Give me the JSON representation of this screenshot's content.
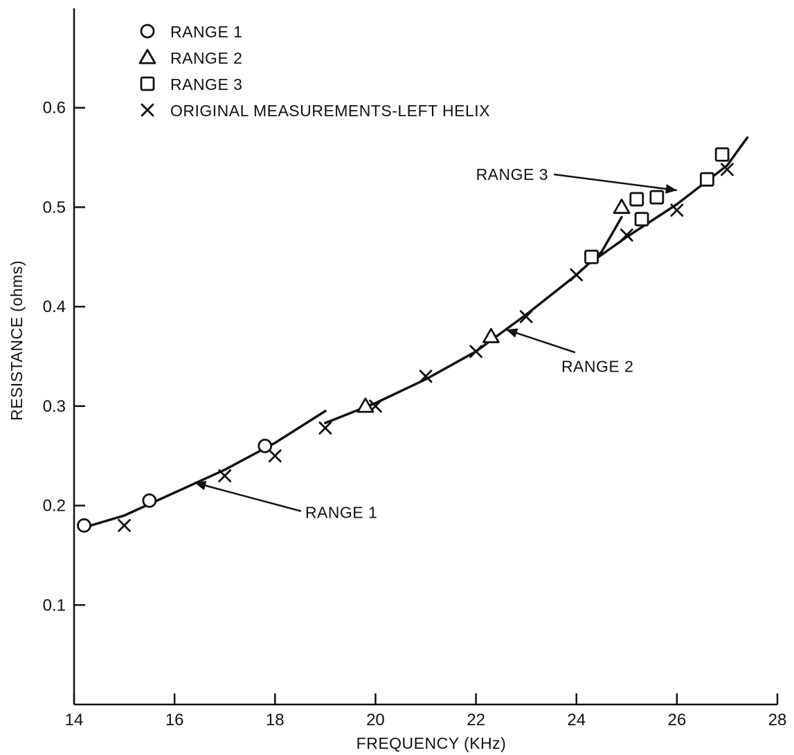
{
  "chart_data": {
    "type": "scatter",
    "title": "",
    "xlabel": "FREQUENCY (KHz)",
    "ylabel": "RESISTANCE (ohms)",
    "xlim": [
      14,
      28
    ],
    "ylim": [
      0,
      0.7
    ],
    "x_ticks": [
      14,
      16,
      18,
      20,
      22,
      24,
      26,
      28
    ],
    "y_ticks": [
      0.1,
      0.2,
      0.3,
      0.4,
      0.5,
      0.6
    ],
    "x_tick_labels": [
      "14",
      "16",
      "18",
      "20",
      "22",
      "24",
      "26",
      "28"
    ],
    "y_tick_labels": [
      "0.1",
      "0.2",
      "0.3",
      "0.4",
      "0.5",
      "0.6"
    ],
    "grid": false,
    "legend_position": "top-left",
    "series": [
      {
        "name": "RANGE 1",
        "marker": "circle",
        "points": [
          [
            14.2,
            0.18
          ],
          [
            15.5,
            0.205
          ],
          [
            17.8,
            0.26
          ]
        ]
      },
      {
        "name": "RANGE 2",
        "marker": "triangle",
        "points": [
          [
            19.8,
            0.3
          ],
          [
            22.3,
            0.37
          ],
          [
            24.9,
            0.5
          ]
        ]
      },
      {
        "name": "RANGE 3",
        "marker": "square",
        "points": [
          [
            24.3,
            0.45
          ],
          [
            25.2,
            0.508
          ],
          [
            25.3,
            0.488
          ],
          [
            25.6,
            0.51
          ],
          [
            26.6,
            0.528
          ],
          [
            26.9,
            0.553
          ]
        ]
      },
      {
        "name": "ORIGINAL MEASUREMENTS-LEFT HELIX",
        "marker": "x",
        "points": [
          [
            15.0,
            0.18
          ],
          [
            17.0,
            0.23
          ],
          [
            18.0,
            0.25
          ],
          [
            19.0,
            0.278
          ],
          [
            20.0,
            0.3
          ],
          [
            21.0,
            0.33
          ],
          [
            22.0,
            0.355
          ],
          [
            23.0,
            0.39
          ],
          [
            24.0,
            0.432
          ],
          [
            25.0,
            0.472
          ],
          [
            26.0,
            0.497
          ],
          [
            27.0,
            0.538
          ]
        ]
      }
    ],
    "curves": [
      {
        "name": "RANGE 1",
        "points": [
          [
            14.2,
            0.178
          ],
          [
            15.0,
            0.19
          ],
          [
            16.0,
            0.213
          ],
          [
            17.0,
            0.236
          ],
          [
            18.0,
            0.263
          ],
          [
            19.0,
            0.295
          ]
        ]
      },
      {
        "name": "RANGE 2",
        "points": [
          [
            19.0,
            0.283
          ],
          [
            20.0,
            0.303
          ],
          [
            21.0,
            0.327
          ],
          [
            22.0,
            0.355
          ],
          [
            23.0,
            0.392
          ],
          [
            24.0,
            0.432
          ],
          [
            24.5,
            0.455
          ],
          [
            24.9,
            0.49
          ]
        ]
      },
      {
        "name": "RANGE 3",
        "points": [
          [
            24.3,
            0.445
          ],
          [
            25.0,
            0.47
          ],
          [
            26.0,
            0.503
          ],
          [
            27.0,
            0.542
          ],
          [
            27.4,
            0.57
          ]
        ]
      }
    ],
    "annotations": [
      {
        "text": "RANGE 1",
        "at": [
          18.6,
          0.193
        ],
        "points_to": [
          16.4,
          0.223
        ]
      },
      {
        "text": "RANGE 2",
        "at": [
          23.7,
          0.34
        ],
        "points_to": [
          22.6,
          0.377
        ]
      },
      {
        "text": "RANGE 3",
        "at": [
          22.0,
          0.533
        ],
        "points_to": [
          26.0,
          0.517
        ]
      }
    ]
  }
}
